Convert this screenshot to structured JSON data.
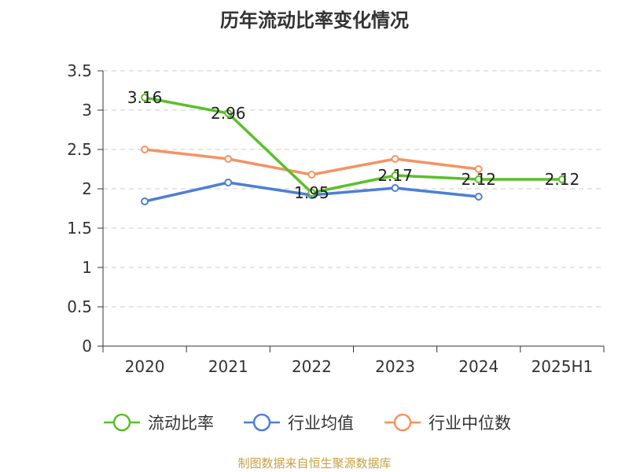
{
  "chart_data": {
    "type": "line",
    "title": "历年流动比率变化情况",
    "categories": [
      "2020",
      "2021",
      "2022",
      "2023",
      "2024",
      "2025H1"
    ],
    "ylim": [
      0,
      3.5
    ],
    "yticks": [
      "0",
      "0.5",
      "1",
      "1.5",
      "2",
      "2.5",
      "3",
      "3.5"
    ],
    "grid": "horizontal dashed",
    "legend_position": "bottom",
    "series": [
      {
        "name": "流动比率",
        "color": "#5cbf2a",
        "values": [
          3.16,
          2.96,
          1.95,
          2.17,
          2.12,
          2.12
        ],
        "labels": [
          "3.16",
          "2.96",
          "1.95",
          "2.17",
          "2.12",
          "2.12"
        ]
      },
      {
        "name": "行业均值",
        "color": "#4e7fd6",
        "values": [
          1.84,
          2.08,
          1.92,
          2.01,
          1.9,
          null
        ]
      },
      {
        "name": "行业中位数",
        "color": "#f59362",
        "values": [
          2.5,
          2.38,
          2.18,
          2.38,
          2.25,
          null
        ]
      }
    ]
  },
  "source": "制图数据来自恒生聚源数据库"
}
